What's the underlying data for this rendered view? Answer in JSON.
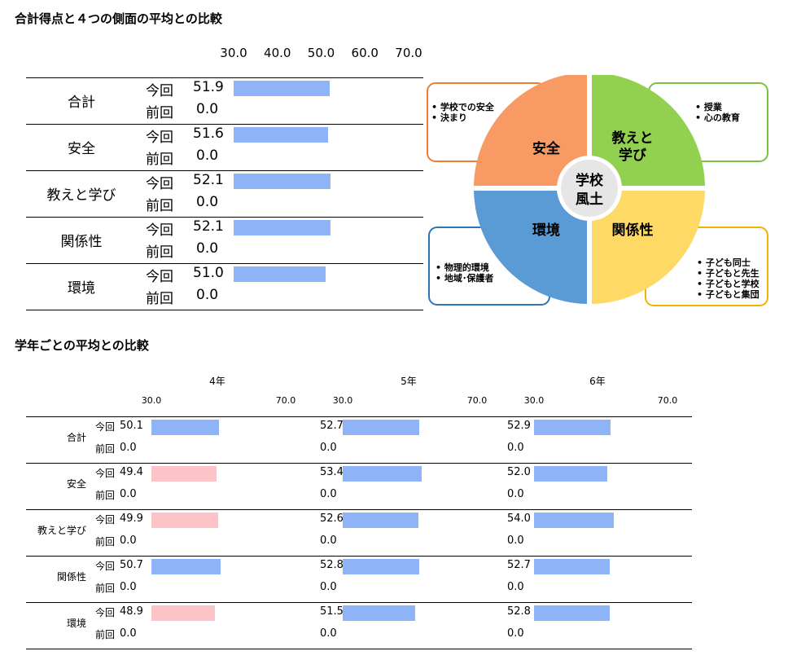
{
  "colors": {
    "above": "#8fb3f7",
    "below": "#fcc3c8"
  },
  "heading1": "合計得点と４つの側面の平均との比較",
  "heading2": "学年ごとの平均との比較",
  "chart_data": [
    {
      "type": "bar",
      "title": "合計得点と４つの側面の平均との比較",
      "xlim": [
        30,
        70
      ],
      "ticks": [
        "30.0",
        "40.0",
        "50.0",
        "60.0",
        "70.0"
      ],
      "categories": [
        "合計",
        "安全",
        "教えと学び",
        "関係性",
        "環境"
      ],
      "series": [
        {
          "name": "今回",
          "values": [
            "51.9",
            "51.6",
            "52.1",
            "52.1",
            "51.0"
          ]
        },
        {
          "name": "前回",
          "values": [
            "0.0",
            "0.0",
            "0.0",
            "0.0",
            "0.0"
          ]
        }
      ]
    },
    {
      "type": "bar",
      "title": "学年ごとの平均との比較",
      "xlim": [
        30,
        70
      ],
      "ticks": [
        "30.0",
        "70.0"
      ],
      "categories": [
        "合計",
        "安全",
        "教えと学び",
        "関係性",
        "環境"
      ],
      "row_labels": [
        "今回",
        "前回"
      ],
      "groups": [
        {
          "name": "4年",
          "current": [
            "50.1",
            "49.4",
            "49.9",
            "50.7",
            "48.9"
          ],
          "previous": [
            "0.0",
            "0.0",
            "0.0",
            "0.0",
            "0.0"
          ]
        },
        {
          "name": "5年",
          "current": [
            "52.7",
            "53.4",
            "52.6",
            "52.8",
            "51.5"
          ],
          "previous": [
            "0.0",
            "0.0",
            "0.0",
            "0.0",
            "0.0"
          ]
        },
        {
          "name": "6年",
          "current": [
            "52.9",
            "52.0",
            "54.0",
            "52.7",
            "52.8"
          ],
          "previous": [
            "0.0",
            "0.0",
            "0.0",
            "0.0",
            "0.0"
          ]
        }
      ]
    }
  ],
  "diagram": {
    "center": [
      "学校",
      "風土"
    ],
    "quadrants": [
      {
        "name": "安全",
        "color": "#f79a63",
        "border": "#ef7d36",
        "notes": [
          "• 学校での安全",
          "• 決まり"
        ]
      },
      {
        "name": "教えと\n学び",
        "color": "#92d050",
        "border": "#7cc043",
        "notes": [
          "• 授業",
          "• 心の教育"
        ]
      },
      {
        "name": "環境",
        "color": "#5b9bd5",
        "border": "#2e75b6",
        "notes": [
          "• 物理的環境",
          "• 地域･保護者"
        ]
      },
      {
        "name": "関係性",
        "color": "#ffd966",
        "border": "#f0b400",
        "notes": [
          "• 子ども同士",
          "• 子どもと先生",
          "• 子どもと学校",
          "• 子どもと集団"
        ]
      }
    ]
  }
}
